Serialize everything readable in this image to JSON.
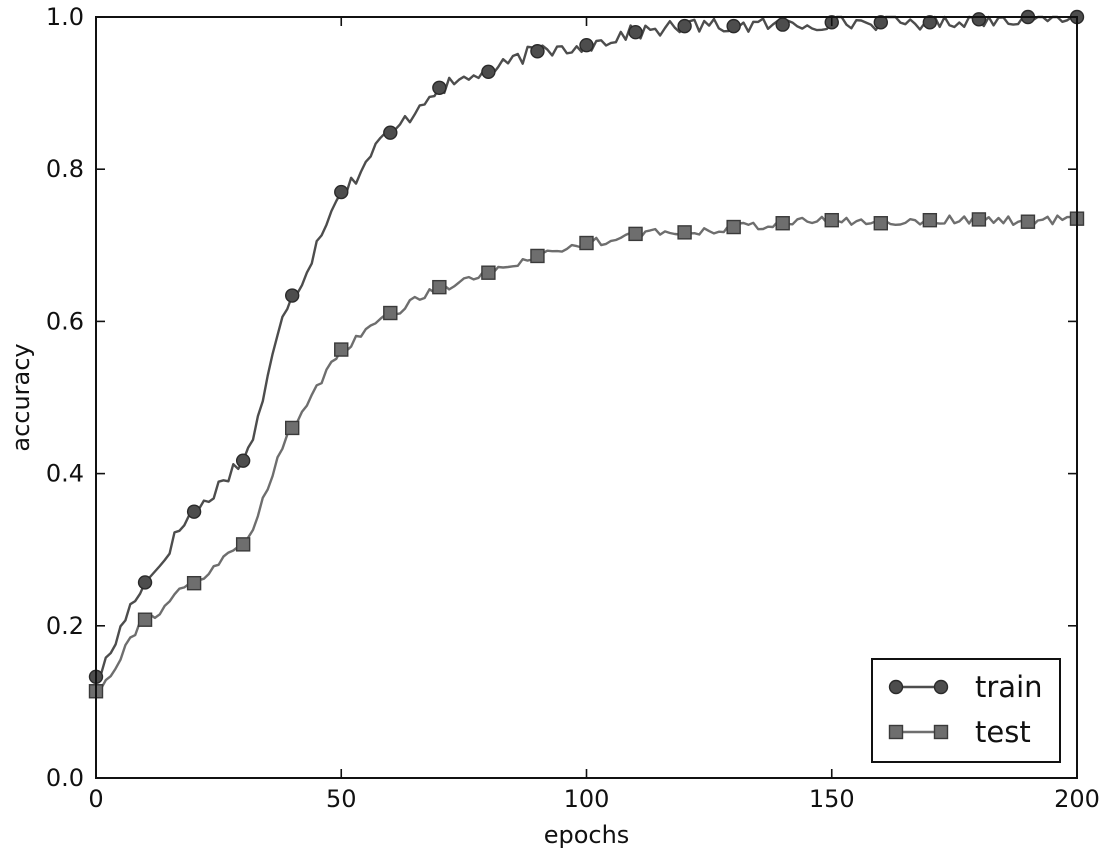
{
  "chart_data": {
    "type": "line",
    "title": "",
    "xlabel": "epochs",
    "ylabel": "accuracy",
    "xlim": [
      0,
      200
    ],
    "ylim": [
      0.0,
      1.0
    ],
    "xticks": [
      "0",
      "50",
      "100",
      "150",
      "200"
    ],
    "yticks": [
      "0.0",
      "0.2",
      "0.4",
      "0.6",
      "0.8",
      "1.0"
    ],
    "grid": false,
    "legend_position": "bottom-right",
    "series": [
      {
        "name": "train",
        "marker": "circle",
        "color": "#4d4d4d",
        "x": [
          0,
          10,
          20,
          30,
          40,
          50,
          60,
          70,
          80,
          90,
          100,
          110,
          120,
          130,
          140,
          150,
          160,
          170,
          180,
          190,
          200
        ],
        "y": [
          0.133,
          0.257,
          0.35,
          0.417,
          0.634,
          0.77,
          0.848,
          0.907,
          0.928,
          0.955,
          0.963,
          0.98,
          0.988,
          0.988,
          0.99,
          0.993,
          0.993,
          0.993,
          0.997,
          1.0,
          1.0
        ]
      },
      {
        "name": "test",
        "marker": "square",
        "color": "#6e6e6e",
        "x": [
          0,
          10,
          20,
          30,
          40,
          50,
          60,
          70,
          80,
          90,
          100,
          110,
          120,
          130,
          140,
          150,
          160,
          170,
          180,
          190,
          200
        ],
        "y": [
          0.114,
          0.208,
          0.256,
          0.307,
          0.46,
          0.563,
          0.611,
          0.645,
          0.664,
          0.686,
          0.703,
          0.715,
          0.717,
          0.724,
          0.729,
          0.733,
          0.729,
          0.733,
          0.734,
          0.731,
          0.735
        ]
      }
    ]
  }
}
